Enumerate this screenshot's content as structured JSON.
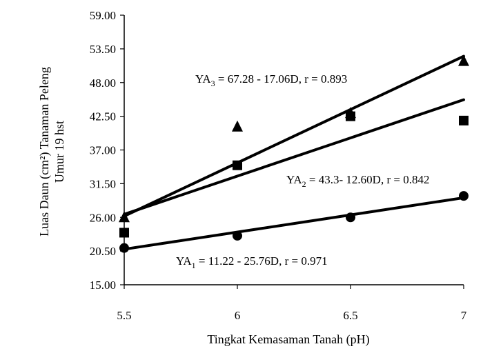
{
  "chart_data": {
    "type": "scatter",
    "title": "",
    "xlabel": "Tingkat Kemasaman Tanah (pH)",
    "ylabel_lines": [
      "Luas Daun (cm²) Tanaman Peleng",
      "Umur 19 hst"
    ],
    "x_ticks": [
      "5.5",
      "6",
      "6.5",
      "7"
    ],
    "y_ticks": [
      "15.00",
      "20.50",
      "26.00",
      "31.50",
      "37.00",
      "42.50",
      "48.00",
      "53.50",
      "59.00"
    ],
    "xlim": [
      5.5,
      7
    ],
    "ylim": [
      15,
      59
    ],
    "grid": false,
    "series": [
      {
        "marker": "circle",
        "points": [
          [
            5.5,
            21.0
          ],
          [
            6,
            23.0
          ],
          [
            6.5,
            26.0
          ],
          [
            7,
            29.5
          ]
        ],
        "trend": [
          [
            5.5,
            20.8
          ],
          [
            7,
            29.2
          ]
        ],
        "equation": {
          "pre": "YA",
          "sub": "1",
          "post": " = 11.22 - 25.76D, r = 0.971"
        }
      },
      {
        "marker": "square",
        "points": [
          [
            5.5,
            23.5
          ],
          [
            6,
            34.5
          ],
          [
            6.5,
            42.5
          ],
          [
            7,
            41.8
          ]
        ],
        "trend": [
          [
            5.5,
            26.5
          ],
          [
            7,
            45.2
          ]
        ],
        "equation": {
          "pre": "YA",
          "sub": "2",
          "post": " = 43.3- 12.60D, r = 0.842"
        }
      },
      {
        "marker": "triangle",
        "points": [
          [
            5.5,
            26.0
          ],
          [
            6,
            40.8
          ],
          [
            6.5,
            43.0
          ],
          [
            7,
            51.5
          ]
        ],
        "trend": [
          [
            5.5,
            26.2
          ],
          [
            7,
            52.3
          ]
        ],
        "equation": {
          "pre": "YA",
          "sub": "3",
          "post": " = 67.28 - 17.06D, r = 0.893"
        }
      }
    ]
  }
}
